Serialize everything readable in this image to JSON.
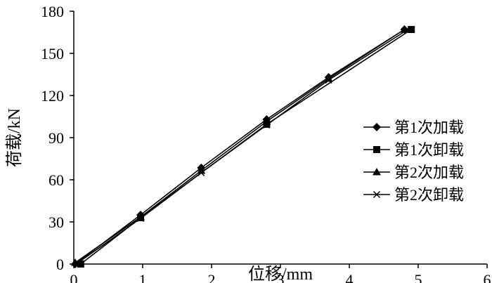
{
  "chart_data": {
    "type": "line",
    "xlabel": "位移/mm",
    "ylabel": "荷载/kN",
    "xlim": [
      0,
      6
    ],
    "ylim": [
      0,
      180
    ],
    "xticks": [
      "0",
      "1",
      "2",
      "3",
      "4",
      "5",
      "6"
    ],
    "yticks": [
      "0",
      "30",
      "60",
      "90",
      "120",
      "150",
      "180"
    ],
    "grid": false,
    "legend_position": "right",
    "series": [
      {
        "name": "第1次加载",
        "marker": "diamond",
        "x": [
          0.02,
          0.97,
          1.85,
          2.8,
          3.7,
          4.8
        ],
        "y": [
          0,
          35,
          68.5,
          103,
          133,
          167
        ]
      },
      {
        "name": "第1次卸载",
        "marker": "square",
        "x": [
          0.1,
          0.97,
          2.8,
          4.9
        ],
        "y": [
          0,
          33,
          99.5,
          167
        ]
      },
      {
        "name": "第2次加载",
        "marker": "triangle",
        "x": [
          0.02,
          0.97,
          1.85,
          2.8,
          3.7,
          4.8
        ],
        "y": [
          1,
          33.5,
          66.5,
          101.5,
          132,
          167
        ]
      },
      {
        "name": "第2次卸载",
        "marker": "x",
        "x": [
          0.05,
          0.97,
          1.85,
          2.8,
          3.7,
          4.85
        ],
        "y": [
          0.5,
          32.5,
          65,
          99,
          131,
          167
        ]
      }
    ]
  }
}
